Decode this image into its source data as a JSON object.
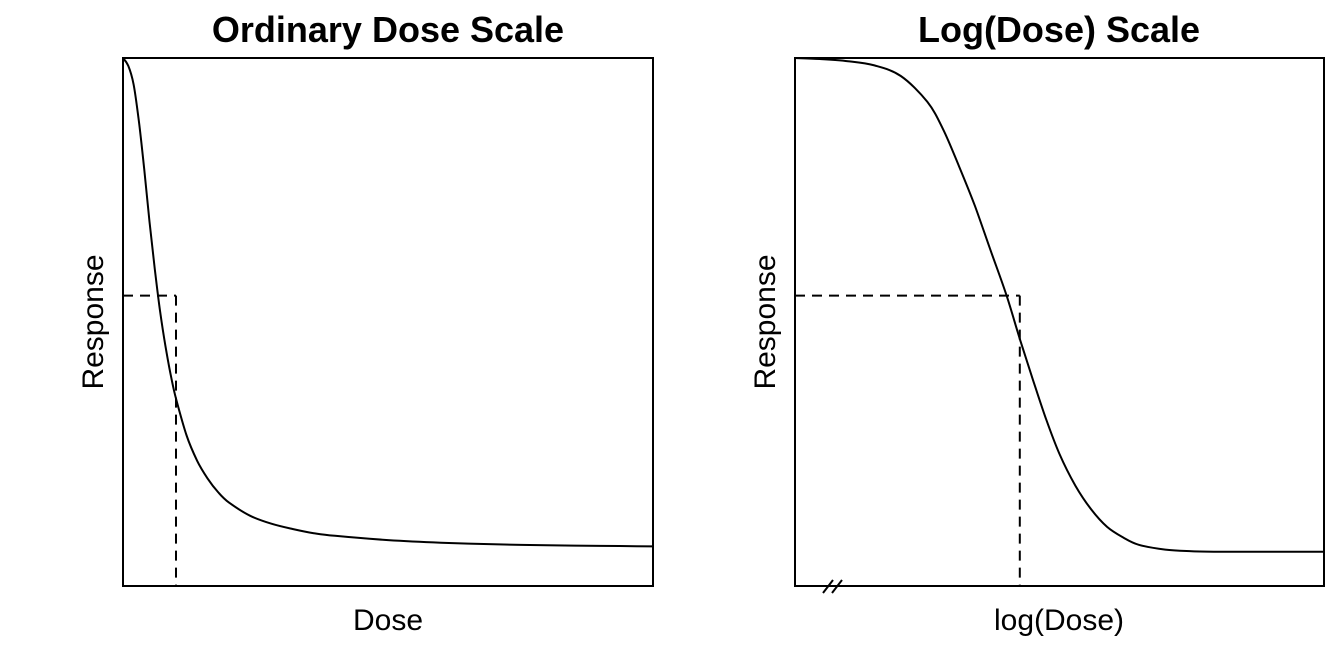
{
  "chart_data": [
    {
      "type": "line",
      "title": "Ordinary Dose Scale",
      "xlabel": "Dose",
      "ylabel": "Response",
      "x_tick_labels": [],
      "y_tick_labels": [],
      "xlim": [
        0,
        10
      ],
      "ylim": [
        0,
        1
      ],
      "grid": false,
      "series": [
        {
          "x": [
            0,
            0.1,
            0.2,
            0.3,
            0.4,
            0.5,
            0.6,
            0.7,
            0.8,
            0.9,
            1.0,
            1.2,
            1.4,
            1.6,
            1.8,
            2.0,
            2.4,
            2.8,
            3.2,
            3.6,
            4.0,
            5.0,
            6.0,
            7.0,
            8.0,
            9.0,
            10.0
          ],
          "y": [
            1.0,
            0.985,
            0.95,
            0.88,
            0.79,
            0.69,
            0.6,
            0.52,
            0.455,
            0.4,
            0.355,
            0.285,
            0.237,
            0.203,
            0.177,
            0.158,
            0.133,
            0.118,
            0.108,
            0.1,
            0.095,
            0.087,
            0.082,
            0.079,
            0.077,
            0.076,
            0.075
          ]
        }
      ],
      "reference": {
        "x": 1.0,
        "y": 0.55
      }
    },
    {
      "type": "line",
      "title": "Log(Dose) Scale",
      "xlabel": "log(Dose)",
      "ylabel": "Response",
      "x_tick_labels": [],
      "y_tick_labels": [],
      "xlim": [
        0,
        10
      ],
      "ylim": [
        0,
        1
      ],
      "axis_break": "bottom-left",
      "grid": false,
      "series": [
        {
          "x": [
            0,
            0.5,
            1.0,
            1.5,
            2.0,
            2.5,
            2.8,
            3.1,
            3.4,
            3.7,
            4.0,
            4.25,
            4.5,
            4.75,
            5.0,
            5.3,
            5.6,
            5.9,
            6.2,
            6.5,
            7.0,
            7.5,
            8.0,
            8.5,
            9.0,
            10.0
          ],
          "y": [
            1.0,
            0.998,
            0.994,
            0.986,
            0.966,
            0.917,
            0.865,
            0.795,
            0.72,
            0.635,
            0.55,
            0.468,
            0.39,
            0.315,
            0.25,
            0.19,
            0.145,
            0.112,
            0.092,
            0.078,
            0.069,
            0.066,
            0.065,
            0.065,
            0.065,
            0.065
          ]
        }
      ],
      "reference": {
        "x": 4.25,
        "y": 0.55
      }
    }
  ]
}
